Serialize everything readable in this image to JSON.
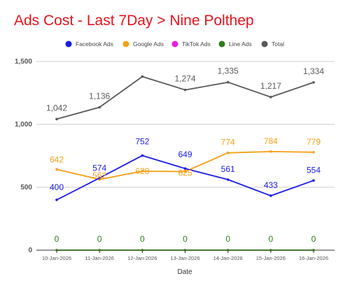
{
  "chart_data": {
    "type": "line",
    "title": "Ads Cost - Last 7Day > Nine Polthep",
    "xlabel": "Date",
    "ylabel": "",
    "ylim": [
      0,
      1500
    ],
    "yticks": [
      "0",
      "500",
      "1,000",
      "1,500"
    ],
    "ytick_values": [
      0,
      500,
      1000,
      1500
    ],
    "legend_position": "top",
    "grid": true,
    "categories": [
      "10-Jan-2026",
      "11-Jan-2026",
      "12-Jan-2026",
      "13-Jan-2026",
      "14-Jan-2026",
      "15-Jan-2026",
      "16-Jan-2026"
    ],
    "series": [
      {
        "name": "Facebook Ads",
        "color": "#1a1ae6",
        "values": [
          400,
          574,
          752,
          649,
          561,
          433,
          554
        ],
        "labels": [
          "400",
          "574",
          "752",
          "649",
          "561",
          "433",
          "554"
        ]
      },
      {
        "name": "Google Ads",
        "color": "#f5a016",
        "values": [
          642,
          562,
          628,
          625,
          774,
          784,
          779
        ],
        "labels": [
          "642",
          "562",
          "628",
          "625",
          "774",
          "784",
          "779"
        ]
      },
      {
        "name": "TikTok Ads",
        "color": "#e61ee6",
        "values": [
          0,
          0,
          0,
          0,
          0,
          0,
          0
        ],
        "labels": []
      },
      {
        "name": "Line Ads",
        "color": "#2e7d1a",
        "values": [
          0,
          0,
          0,
          0,
          0,
          0,
          0
        ],
        "labels": [
          "0",
          "0",
          "0",
          "0",
          "0",
          "0",
          "0"
        ]
      },
      {
        "name": "Total",
        "color": "#595959",
        "values": [
          1042,
          1136,
          1380,
          1274,
          1335,
          1217,
          1334
        ],
        "labels": [
          "1,042",
          "1,136",
          "",
          "1,274",
          "1,335",
          "1,217",
          "1,334"
        ]
      }
    ]
  }
}
